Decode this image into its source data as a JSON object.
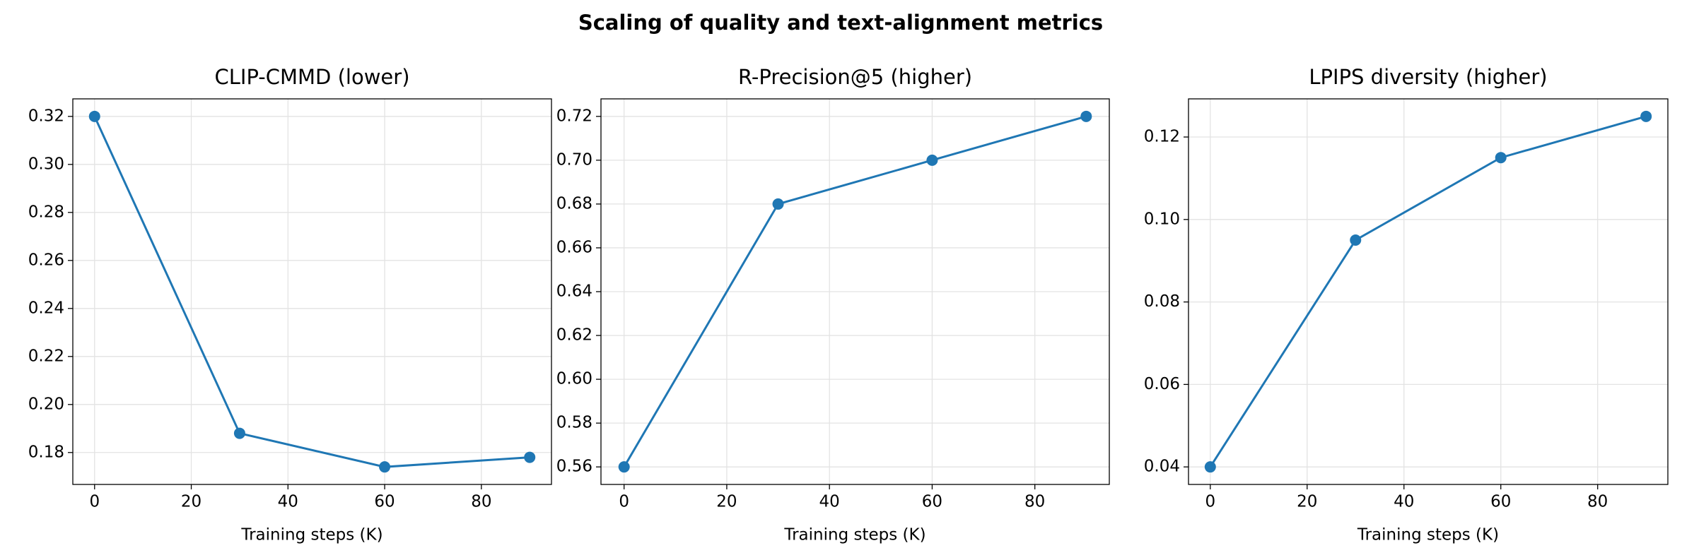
{
  "title": "Scaling of quality and text-alignment metrics",
  "chart_data": [
    {
      "type": "line",
      "title": "CLIP-CMMD (lower)",
      "xlabel": "Training steps (K)",
      "x": [
        0,
        30,
        60,
        90
      ],
      "series": [
        {
          "name": "CLIP-CMMD",
          "color": "#1f77b4",
          "values": [
            0.32,
            0.188,
            0.174,
            0.178
          ]
        }
      ],
      "xlim": [
        -4.5,
        94.5
      ],
      "xticks": [
        0,
        20,
        40,
        60,
        80
      ],
      "ylim": [
        0.1667,
        0.3273
      ],
      "yticks": [
        0.18,
        {
          "value": 0.2,
          "label": "0.20"
        },
        0.22,
        0.24,
        0.26,
        0.28,
        {
          "value": 0.3,
          "label": "0.30"
        },
        0.32
      ],
      "grid": true
    },
    {
      "type": "line",
      "title": "R-Precision@5 (higher)",
      "xlabel": "Training steps (K)",
      "x": [
        0,
        30,
        60,
        90
      ],
      "series": [
        {
          "name": "R-Precision@5",
          "color": "#1f77b4",
          "values": [
            0.56,
            0.68,
            0.7,
            0.72
          ]
        }
      ],
      "xlim": [
        -4.5,
        94.5
      ],
      "xticks": [
        0,
        20,
        40,
        60,
        80
      ],
      "ylim": [
        0.552,
        0.728
      ],
      "yticks": [
        0.56,
        0.58,
        {
          "value": 0.6,
          "label": "0.60"
        },
        0.62,
        0.64,
        0.66,
        0.68,
        {
          "value": 0.7,
          "label": "0.70"
        },
        0.72
      ],
      "grid": true
    },
    {
      "type": "line",
      "title": "LPIPS diversity (higher)",
      "xlabel": "Training steps (K)",
      "x": [
        0,
        30,
        60,
        90
      ],
      "series": [
        {
          "name": "LPIPS diversity",
          "color": "#1f77b4",
          "values": [
            0.04,
            0.095,
            0.115,
            0.125
          ]
        }
      ],
      "xlim": [
        -4.5,
        94.5
      ],
      "xticks": [
        0,
        20,
        40,
        60,
        80
      ],
      "ylim": [
        0.03575,
        0.12925
      ],
      "yticks": [
        0.04,
        0.06,
        0.08,
        {
          "value": 0.1,
          "label": "0.10"
        },
        0.12
      ],
      "grid": true
    }
  ]
}
